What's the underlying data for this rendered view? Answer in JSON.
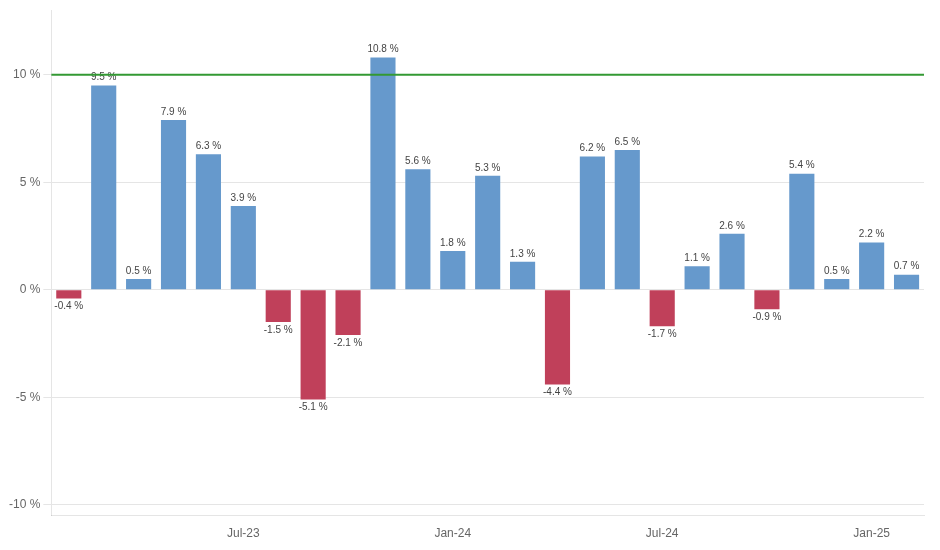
{
  "chart_data": {
    "type": "bar",
    "categories": [
      null,
      null,
      null,
      null,
      null,
      "Jul-23",
      null,
      null,
      null,
      null,
      null,
      "Jan-24",
      null,
      null,
      null,
      null,
      null,
      "Jul-24",
      null,
      null,
      null,
      null,
      null,
      "Jan-25",
      null
    ],
    "values": [
      -0.4,
      9.5,
      0.5,
      7.9,
      6.3,
      3.9,
      -1.5,
      -5.1,
      -2.1,
      10.8,
      5.6,
      1.8,
      5.3,
      1.3,
      -4.4,
      6.2,
      6.5,
      -1.7,
      1.1,
      2.6,
      -0.9,
      5.4,
      0.5,
      2.2,
      0.7
    ],
    "value_labels": [
      "-0.4 %",
      "9.5 %",
      "0.5 %",
      "7.9 %",
      "6.3 %",
      "3.9 %",
      "-1.5 %",
      "-5.1 %",
      "-2.1 %",
      "10.8 %",
      "5.6 %",
      "1.8 %",
      "5.3 %",
      "1.3 %",
      "-4.4 %",
      "6.2 %",
      "6.5 %",
      "-1.7 %",
      "1.1 %",
      "2.6 %",
      "-0.9 %",
      "5.4 %",
      "0.5 %",
      "2.2 %",
      "0.7 %"
    ],
    "colors": [
      "#C0405A",
      "#6699CC",
      "#6699CC",
      "#6699CC",
      "#6699CC",
      "#6699CC",
      "#C0405A",
      "#C0405A",
      "#C0405A",
      "#6699CC",
      "#6699CC",
      "#6699CC",
      "#6699CC",
      "#6699CC",
      "#C0405A",
      "#6699CC",
      "#6699CC",
      "#C0405A",
      "#6699CC",
      "#6699CC",
      "#C0405A",
      "#6699CC",
      "#6699CC",
      "#6699CC",
      "#6699CC"
    ],
    "data_labels": true,
    "ylim": [
      -10.5,
      13.0
    ],
    "yticks": [
      {
        "value": -10,
        "label": "-10 %"
      },
      {
        "value": -5,
        "label": "-5 %"
      },
      {
        "value": 0,
        "label": "0 %"
      },
      {
        "value": 5,
        "label": "5 %"
      },
      {
        "value": 10,
        "label": "10 %"
      }
    ],
    "grid": true,
    "hlines": [
      {
        "y": 10.0,
        "color": "#339933"
      }
    ]
  }
}
